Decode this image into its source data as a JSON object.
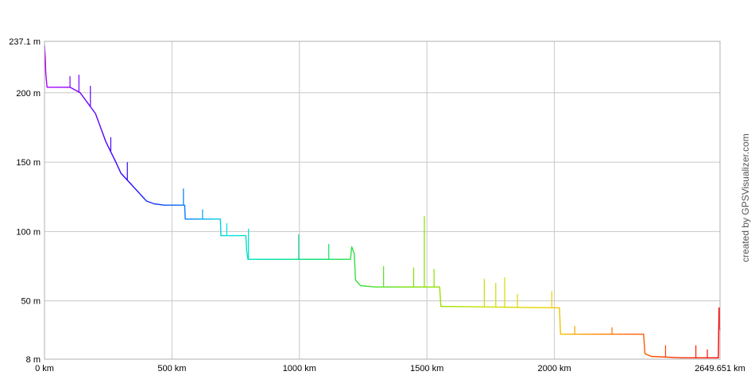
{
  "chart_data": {
    "type": "line",
    "title": "",
    "xlabel": "",
    "ylabel": "",
    "x_unit": "km",
    "y_unit": "m",
    "xlim": [
      0,
      2649.651
    ],
    "ylim": [
      8,
      237.1
    ],
    "grid": true,
    "colormap": "rainbow by distance (purple → blue → cyan → green → yellow → orange → red)",
    "x_ticks": [
      {
        "value": 0,
        "label": "0 km"
      },
      {
        "value": 500,
        "label": "500 km"
      },
      {
        "value": 1000,
        "label": "1000 km"
      },
      {
        "value": 1500,
        "label": "1500 km"
      },
      {
        "value": 2000,
        "label": "2000 km"
      },
      {
        "value": 2649.651,
        "label": "2649.651 km"
      }
    ],
    "y_ticks": [
      {
        "value": 237.1,
        "label": "237.1 m"
      },
      {
        "value": 200,
        "label": "200 m"
      },
      {
        "value": 150,
        "label": "150 m"
      },
      {
        "value": 100,
        "label": "100 m"
      },
      {
        "value": 50,
        "label": "50 m"
      },
      {
        "value": 8,
        "label": "8 m"
      }
    ],
    "series": [
      {
        "x": [
          0,
          3,
          5,
          10,
          100,
          140,
          200,
          240,
          280,
          300,
          340,
          380,
          400,
          430,
          470,
          550,
          552,
          690,
          692,
          790,
          793,
          798,
          1200,
          1205,
          1215,
          1220,
          1240,
          1300,
          1550,
          1555,
          1590,
          2020,
          2024,
          2030,
          2350,
          2355,
          2380,
          2500,
          2643,
          2646,
          2649.651
        ],
        "y": [
          234,
          225,
          214,
          204,
          204,
          200,
          185,
          165,
          150,
          142,
          134,
          126,
          122,
          120,
          119,
          119,
          109,
          109,
          97,
          97,
          86,
          80,
          80,
          89,
          84,
          65,
          61,
          60,
          60,
          46,
          46,
          45,
          26,
          26,
          26,
          12,
          10,
          9,
          9,
          45,
          29
        ]
      }
    ],
    "spikes": [
      {
        "x": 100,
        "y": 212
      },
      {
        "x": 135,
        "y": 213
      },
      {
        "x": 180,
        "y": 205
      },
      {
        "x": 260,
        "y": 168
      },
      {
        "x": 325,
        "y": 150
      },
      {
        "x": 545,
        "y": 131
      },
      {
        "x": 620,
        "y": 116
      },
      {
        "x": 715,
        "y": 106
      },
      {
        "x": 800,
        "y": 102
      },
      {
        "x": 997,
        "y": 98
      },
      {
        "x": 1115,
        "y": 91
      },
      {
        "x": 1330,
        "y": 75
      },
      {
        "x": 1448,
        "y": 74
      },
      {
        "x": 1490,
        "y": 111
      },
      {
        "x": 1528,
        "y": 73
      },
      {
        "x": 1725,
        "y": 66
      },
      {
        "x": 1770,
        "y": 63
      },
      {
        "x": 1805,
        "y": 67
      },
      {
        "x": 1855,
        "y": 55
      },
      {
        "x": 1990,
        "y": 57
      },
      {
        "x": 2080,
        "y": 32
      },
      {
        "x": 2226,
        "y": 31
      },
      {
        "x": 2436,
        "y": 18
      },
      {
        "x": 2555,
        "y": 18
      },
      {
        "x": 2600,
        "y": 15
      }
    ]
  },
  "credit": "created by GPSVisualizer.com"
}
